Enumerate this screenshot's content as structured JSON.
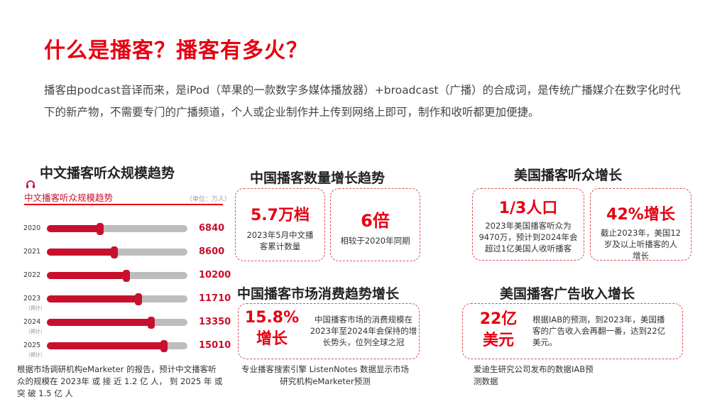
{
  "title": "什么是播客？播客有多火？",
  "intro": "播客由podcast音译而来，是iPod（苹果的一款数字多媒体播放器）+broadcast（广播）的合成词，是传统广播媒介在数字化时代下的新产物，不需要专门的广播频道，个人或企业制作并上传到网络上即可，制作和收听都更加便捷。",
  "left": {
    "section_title": "中文播客听众规模趋势",
    "chart_title": "中文播客听众规模趋势",
    "unit": "（单位：万人）",
    "note": "根据市场调研机构eMarketer 的报告，预计中文播客听众的规模在 2023年 或 接 近 1.2 亿 人， 到 2025 年 或 突 破 1.5 亿 人"
  },
  "chart_data": {
    "type": "bar",
    "title": "中文播客听众规模趋势",
    "unit": "（单位：万人）",
    "categories": [
      "2020",
      "2021",
      "2022",
      "2023",
      "2024",
      "2025"
    ],
    "sublabels": [
      "",
      "",
      "",
      "（预计）",
      "（预计）",
      "（预计）"
    ],
    "values": [
      6840,
      8600,
      10200,
      11710,
      13350,
      15010
    ],
    "xlim": [
      0,
      18000
    ],
    "colors": {
      "bar": "#c8102e",
      "track": "#bdbdbd",
      "value": "#c8102e"
    }
  },
  "cn_count": {
    "section_title": "中国播客数量增长趋势",
    "card1_big": "5.7万档",
    "card1_text": "2023年5月中文播客累计数量",
    "card2_big": "6倍",
    "card2_text": "相较于2020年同期"
  },
  "cn_market": {
    "section_title": "中国播客市场消费趋势增长",
    "big_line1": "15.8%",
    "big_line2": "增长",
    "text": "中国播客市场的消费规模在2023年至2024年会保持的增长势头，位列全球之冠",
    "note": "专业播客搜索引擎 ListenNotes 数据显示市场研究机构eMarketer预测"
  },
  "us_listeners": {
    "section_title": "美国播客听众增长",
    "card1_big": "1/3人口",
    "card1_text": "2023年美国播客听众为9470万，预计到2024年会超过1亿美国人收听播客",
    "card2_big": "42%增长",
    "card2_text": "截止2023年，美国12岁及以上听播客的人增长"
  },
  "us_ads": {
    "section_title": "美国播客广告收入增长",
    "big_line1": "22亿",
    "big_line2": "美元",
    "text": "根据IAB的预测，到2023年，美国播客的广告收入会再翻一番，达到22亿美元。",
    "note": "爱迪生研究公司发布的数据IAB预测数据"
  },
  "accent_color": "#e60012"
}
